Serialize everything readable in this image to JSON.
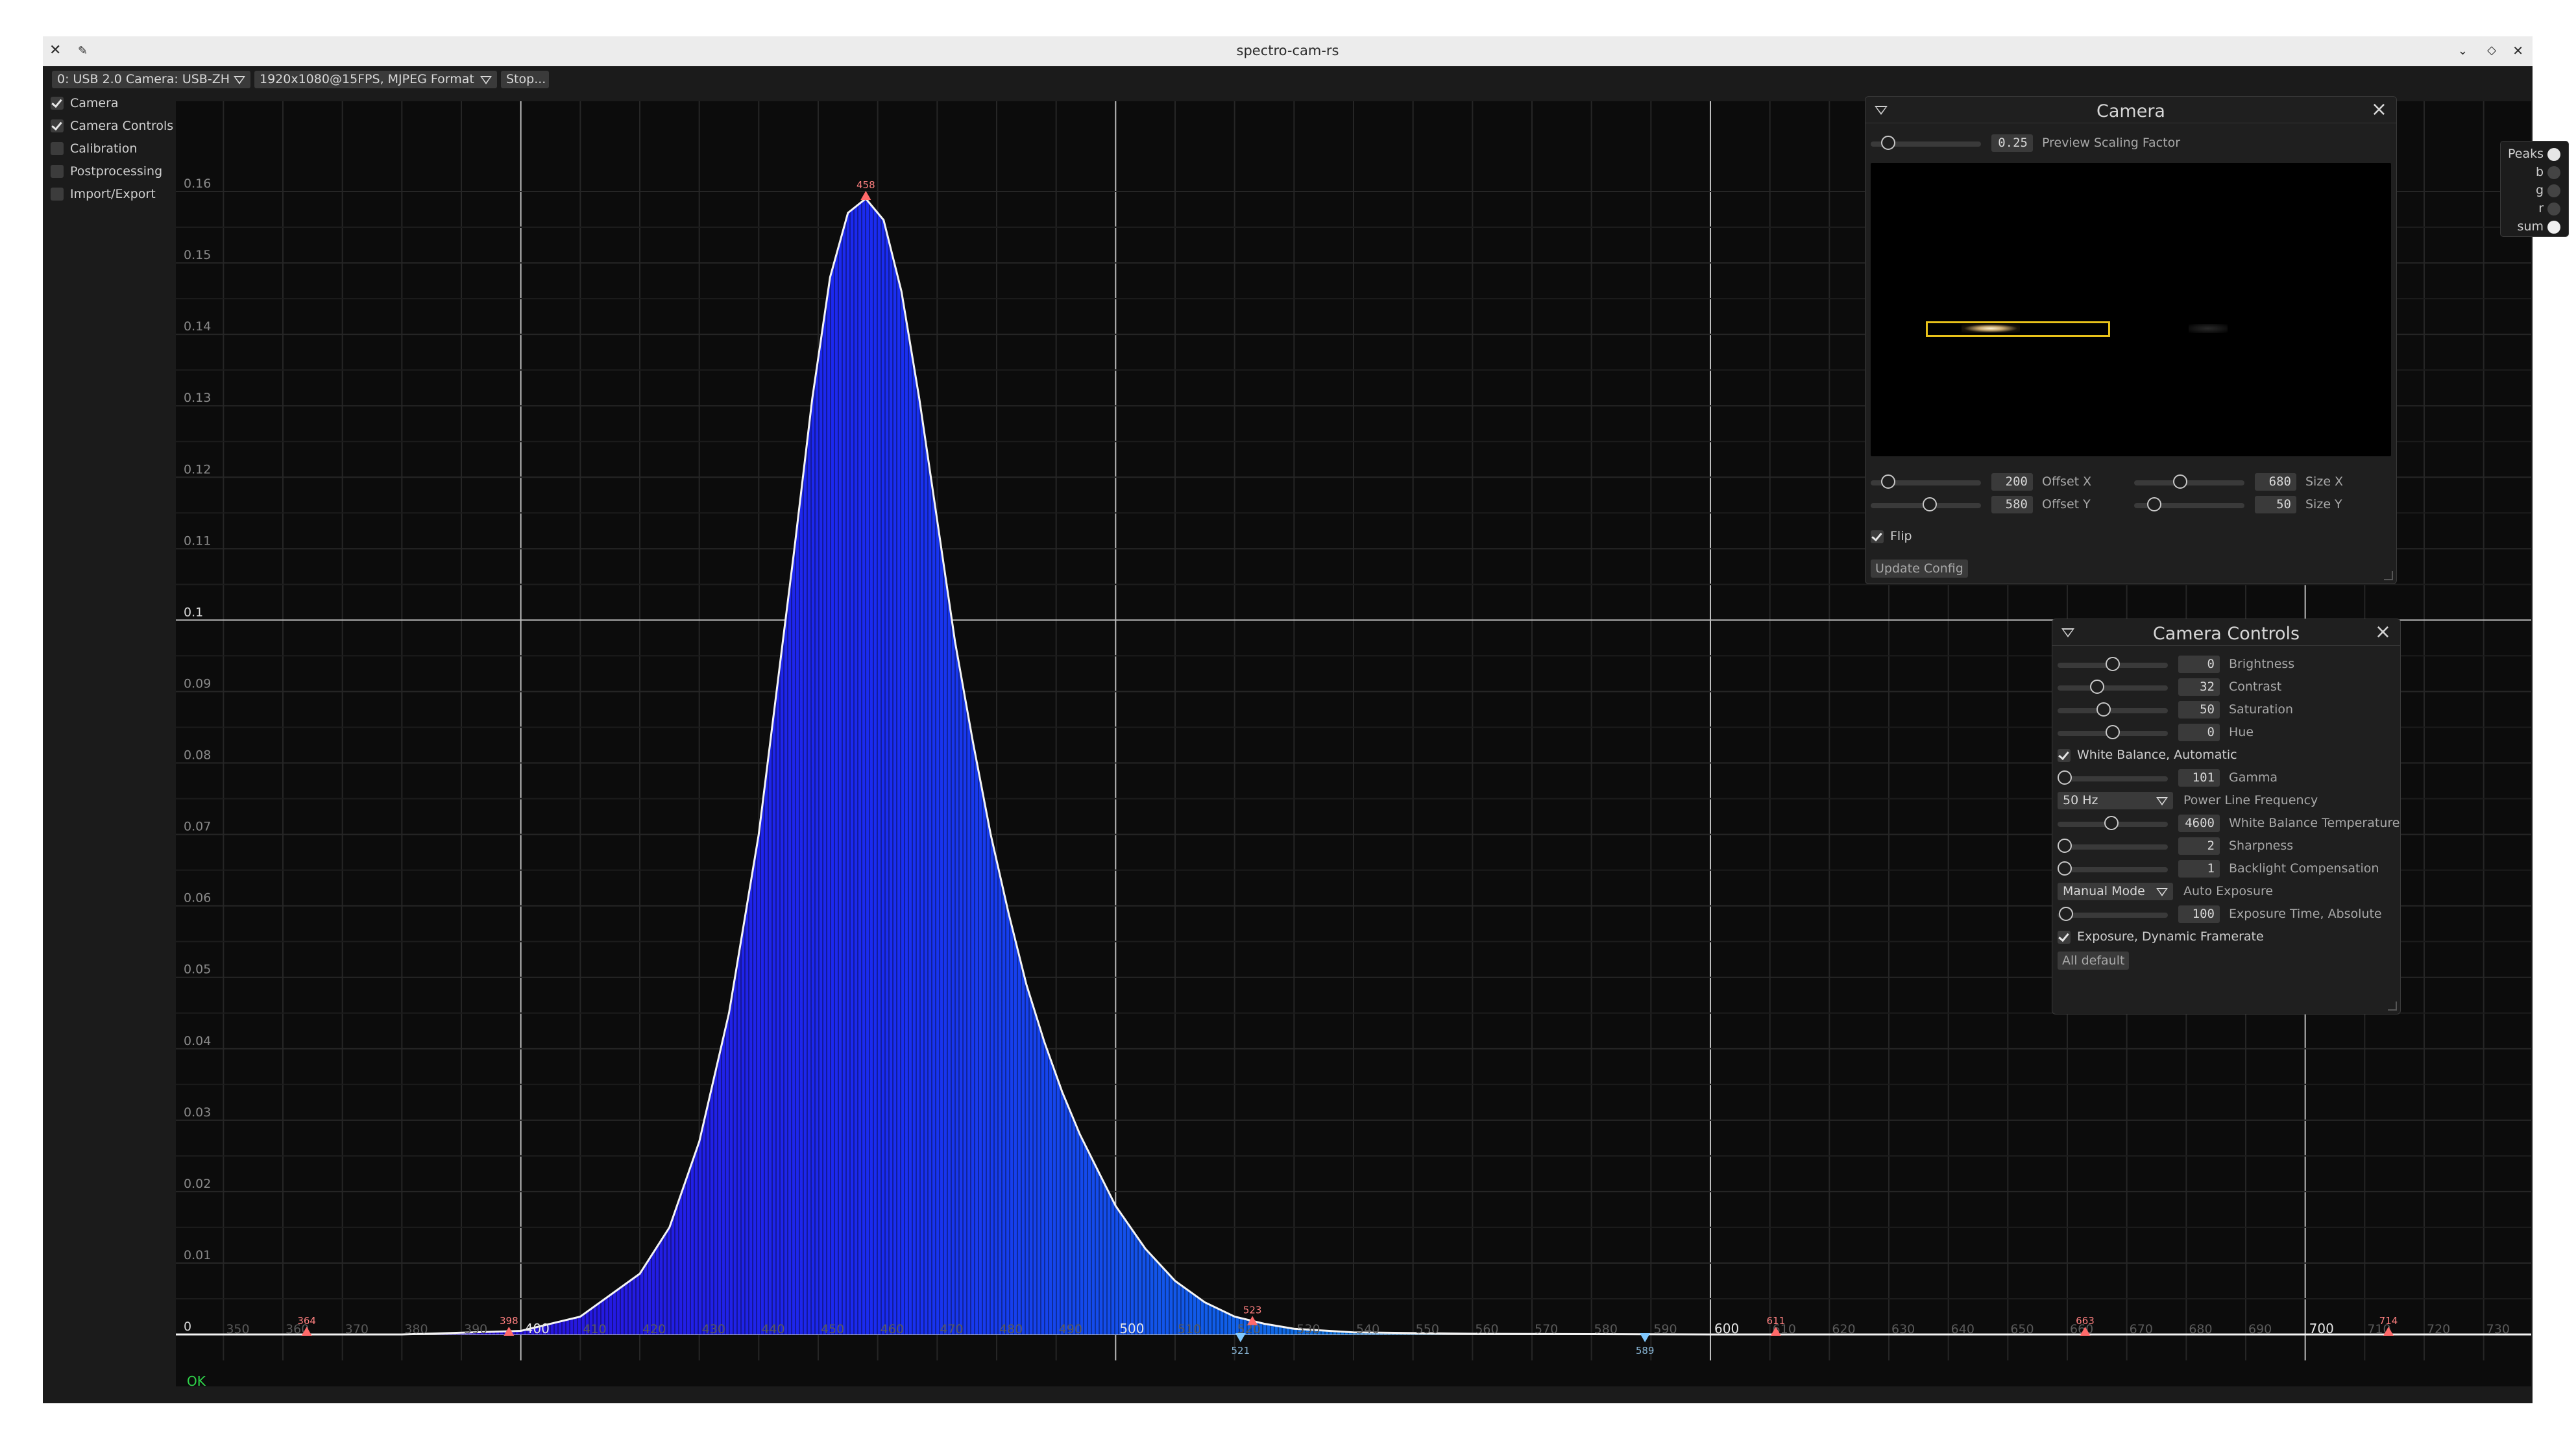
{
  "window": {
    "title": "spectro-cam-rs"
  },
  "toolbar": {
    "camera_select": "0: USB 2.0 Camera: USB-ZH",
    "format_select": "1920x1080@15FPS, MJPEG Format",
    "stop_button": "Stop..."
  },
  "sidebar": {
    "items": [
      {
        "label": "Camera",
        "checked": true
      },
      {
        "label": "Camera Controls",
        "checked": true
      },
      {
        "label": "Calibration",
        "checked": false
      },
      {
        "label": "Postprocessing",
        "checked": false
      },
      {
        "label": "Import/Export",
        "checked": false
      }
    ]
  },
  "status": "OK",
  "legend": {
    "items": [
      {
        "label": "Peaks",
        "color": "#e6e6e6"
      },
      {
        "label": "b",
        "color": "#444444"
      },
      {
        "label": "g",
        "color": "#444444"
      },
      {
        "label": "r",
        "color": "#444444"
      },
      {
        "label": "sum",
        "color": "#f0f0f0"
      }
    ]
  },
  "camera_panel": {
    "title": "Camera",
    "preview_scaling_value": "0.25",
    "preview_scaling_label": "Preview Scaling Factor",
    "offset_x_value": "200",
    "offset_x_label": "Offset X",
    "offset_y_value": "580",
    "offset_y_label": "Offset Y",
    "size_x_value": "680",
    "size_x_label": "Size X",
    "size_y_value": "50",
    "size_y_label": "Size Y",
    "flip_label": "Flip",
    "flip_checked": true,
    "update_button": "Update Config"
  },
  "controls_panel": {
    "title": "Camera Controls",
    "brightness_value": "0",
    "brightness_label": "Brightness",
    "contrast_value": "32",
    "contrast_label": "Contrast",
    "saturation_value": "50",
    "saturation_label": "Saturation",
    "hue_value": "0",
    "hue_label": "Hue",
    "wb_auto_label": "White Balance, Automatic",
    "gamma_value": "101",
    "gamma_label": "Gamma",
    "power_line_value": "50 Hz",
    "power_line_label": "Power Line Frequency",
    "wb_temp_value": "4600",
    "wb_temp_label": "White Balance Temperature",
    "sharpness_value": "2",
    "sharpness_label": "Sharpness",
    "backlight_value": "1",
    "backlight_label": "Backlight Compensation",
    "auto_exposure_value": "Manual Mode",
    "auto_exposure_label": "Auto Exposure",
    "exposure_value": "100",
    "exposure_label": "Exposure Time, Absolute",
    "exposure_dynamic_label": "Exposure, Dynamic Framerate",
    "all_default_button": "All default"
  },
  "chart_data": {
    "type": "area",
    "xlim": [
      342,
      738
    ],
    "ylim": [
      0,
      0.16
    ],
    "y_ticks": [
      "0",
      "0.01",
      "0.02",
      "0.03",
      "0.04",
      "0.05",
      "0.06",
      "0.07",
      "0.08",
      "0.09",
      "0.1",
      "0.11",
      "0.12",
      "0.13",
      "0.14",
      "0.15",
      "0.16"
    ],
    "x_major_ticks": [
      400,
      500,
      600,
      700
    ],
    "x_minor_ticks": [
      350,
      360,
      370,
      380,
      390,
      410,
      420,
      430,
      440,
      450,
      460,
      470,
      480,
      490,
      510,
      520,
      530,
      540,
      550,
      560,
      570,
      580,
      590,
      610,
      620,
      630,
      640,
      650,
      660,
      670,
      680,
      690,
      710,
      720,
      730
    ],
    "series": [
      {
        "x": [
          342,
          380,
          400,
          410,
          420,
          425,
          430,
          435,
          440,
          443,
          446,
          449,
          452,
          455,
          458,
          461,
          464,
          467,
          470,
          473,
          476,
          479,
          482,
          485,
          488,
          491,
          494,
          497,
          500,
          505,
          510,
          515,
          520,
          525,
          530,
          540,
          560,
          600,
          650,
          700,
          738
        ],
        "y": [
          0.0,
          0.0,
          0.0005,
          0.0025,
          0.0085,
          0.015,
          0.027,
          0.045,
          0.07,
          0.09,
          0.11,
          0.131,
          0.148,
          0.157,
          0.159,
          0.156,
          0.146,
          0.131,
          0.114,
          0.097,
          0.083,
          0.07,
          0.059,
          0.049,
          0.041,
          0.034,
          0.028,
          0.023,
          0.018,
          0.012,
          0.0075,
          0.0045,
          0.0025,
          0.0015,
          0.0008,
          0.0003,
          0.0001,
          0.0,
          0.0,
          0.0,
          0.0
        ]
      }
    ],
    "peaks": [
      {
        "label": "364",
        "x": 364,
        "y": 0,
        "dir": "up"
      },
      {
        "label": "398",
        "x": 398,
        "y": 0,
        "dir": "up"
      },
      {
        "label": "458",
        "x": 458,
        "y": 0.159,
        "dir": "up"
      },
      {
        "label": "523",
        "x": 523,
        "y": 0.0015,
        "dir": "up"
      },
      {
        "label": "611",
        "x": 611,
        "y": 0,
        "dir": "up"
      },
      {
        "label": "663",
        "x": 663,
        "y": 0,
        "dir": "up"
      },
      {
        "label": "714",
        "x": 714,
        "y": 0,
        "dir": "up"
      },
      {
        "label": "521",
        "x": 521,
        "y": 0,
        "dir": "down"
      },
      {
        "label": "589",
        "x": 589,
        "y": 0,
        "dir": "down"
      }
    ]
  }
}
